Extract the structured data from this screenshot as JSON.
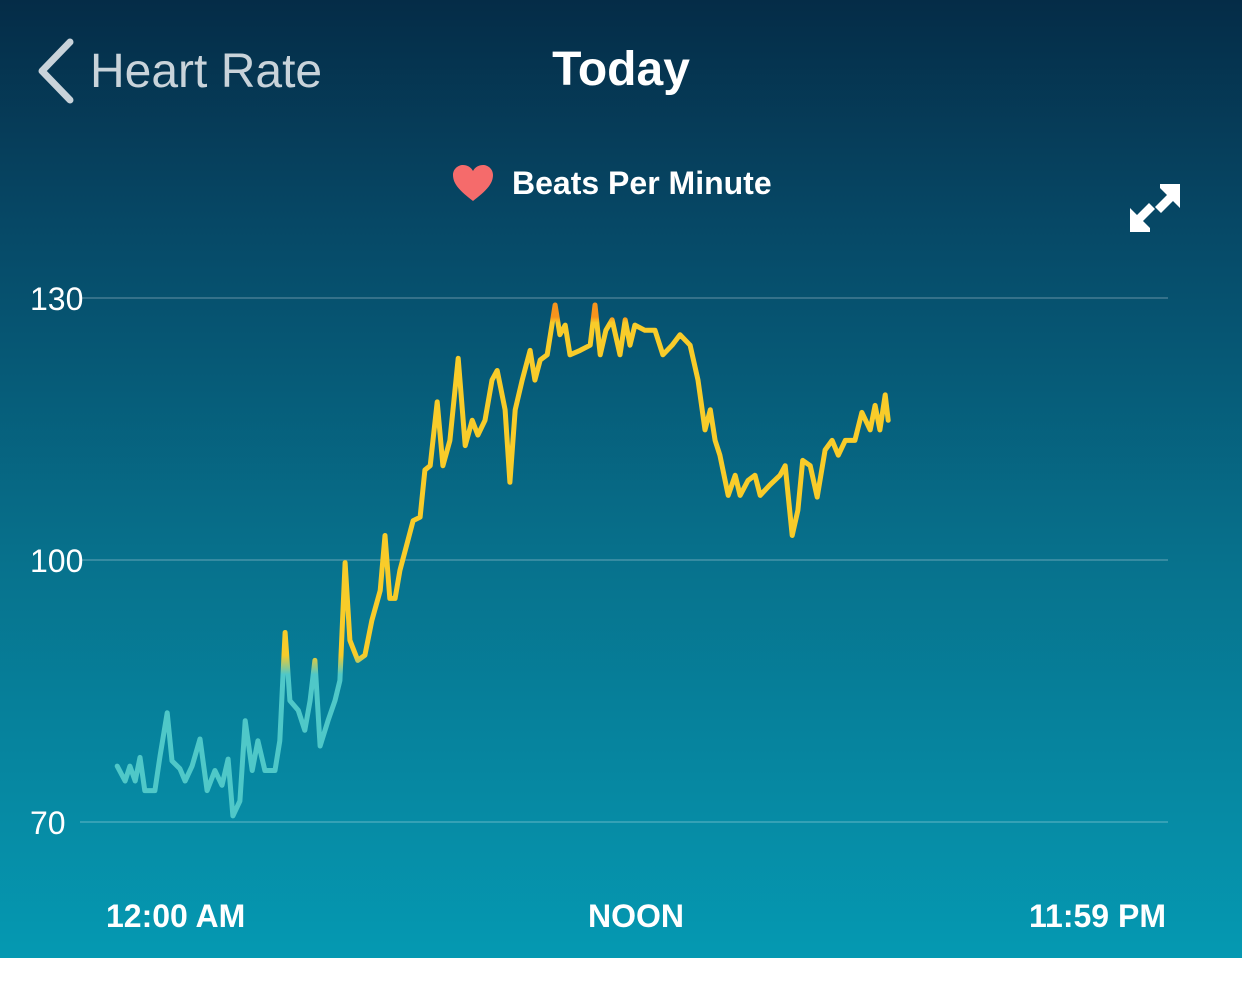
{
  "header": {
    "back_label": "Heart Rate",
    "title": "Today"
  },
  "legend": {
    "label": "Beats Per Minute",
    "icon": "heart-icon",
    "color": "#f56b6b"
  },
  "expand_icon": "expand-icon",
  "colors": {
    "out_of_zone": "#4fc8c8",
    "fat_burn": "#f8cc2a",
    "cardio": "#f7941d"
  },
  "chart_data": {
    "type": "line",
    "title": "Beats Per Minute",
    "xlabel": "",
    "ylabel": "",
    "xlim": [
      0,
      24
    ],
    "ylim": [
      70,
      130
    ],
    "y_ticks": [
      {
        "value": 130,
        "label": "130"
      },
      {
        "value": 100,
        "label": "100"
      },
      {
        "value": 70,
        "label": "70"
      }
    ],
    "x_ticks": [
      {
        "value": 0.5,
        "label": "12:00 AM"
      },
      {
        "value": 12,
        "label": "NOON"
      },
      {
        "value": 23.5,
        "label": "11:59 PM"
      }
    ],
    "grid": true,
    "zones": {
      "fat_burn_min": 88,
      "cardio_min": 127.5
    },
    "series": [
      {
        "name": "Heart Rate",
        "x_unit": "hours",
        "points": [
          [
            0.05,
            76.4
          ],
          [
            0.23,
            74.7
          ],
          [
            0.34,
            76.4
          ],
          [
            0.46,
            74.7
          ],
          [
            0.57,
            77.4
          ],
          [
            0.68,
            73.6
          ],
          [
            0.91,
            73.6
          ],
          [
            1.03,
            77.6
          ],
          [
            1.19,
            82.5
          ],
          [
            1.3,
            77.0
          ],
          [
            1.48,
            76.1
          ],
          [
            1.6,
            74.7
          ],
          [
            1.76,
            76.4
          ],
          [
            1.94,
            79.5
          ],
          [
            2.1,
            73.6
          ],
          [
            2.28,
            75.9
          ],
          [
            2.44,
            74.2
          ],
          [
            2.58,
            77.2
          ],
          [
            2.69,
            70.7
          ],
          [
            2.85,
            72.4
          ],
          [
            2.97,
            81.6
          ],
          [
            3.13,
            75.9
          ],
          [
            3.26,
            79.3
          ],
          [
            3.42,
            75.9
          ],
          [
            3.65,
            75.9
          ],
          [
            3.76,
            79.3
          ],
          [
            3.88,
            91.7
          ],
          [
            3.99,
            83.9
          ],
          [
            4.18,
            82.8
          ],
          [
            4.33,
            80.5
          ],
          [
            4.45,
            83.9
          ],
          [
            4.56,
            88.5
          ],
          [
            4.68,
            78.7
          ],
          [
            4.86,
            81.6
          ],
          [
            5.02,
            83.9
          ],
          [
            5.13,
            86.2
          ],
          [
            5.25,
            99.7
          ],
          [
            5.36,
            90.8
          ],
          [
            5.54,
            88.5
          ],
          [
            5.7,
            89.1
          ],
          [
            5.86,
            93.1
          ],
          [
            6.05,
            96.5
          ],
          [
            6.16,
            102.8
          ],
          [
            6.27,
            95.6
          ],
          [
            6.39,
            95.6
          ],
          [
            6.5,
            98.8
          ],
          [
            6.68,
            102.2
          ],
          [
            6.8,
            104.5
          ],
          [
            6.96,
            104.9
          ],
          [
            7.07,
            110.3
          ],
          [
            7.19,
            110.8
          ],
          [
            7.35,
            118.1
          ],
          [
            7.48,
            110.8
          ],
          [
            7.64,
            113.7
          ],
          [
            7.83,
            123.1
          ],
          [
            7.99,
            113.1
          ],
          [
            8.15,
            116.0
          ],
          [
            8.28,
            114.3
          ],
          [
            8.44,
            116.0
          ],
          [
            8.6,
            120.6
          ],
          [
            8.72,
            121.7
          ],
          [
            8.9,
            117.2
          ],
          [
            9.01,
            108.9
          ],
          [
            9.13,
            117.2
          ],
          [
            9.29,
            120.6
          ],
          [
            9.47,
            124.0
          ],
          [
            9.58,
            120.6
          ],
          [
            9.7,
            122.9
          ],
          [
            9.86,
            123.5
          ],
          [
            10.04,
            129.2
          ],
          [
            10.15,
            125.8
          ],
          [
            10.27,
            126.9
          ],
          [
            10.38,
            123.5
          ],
          [
            10.61,
            124.0
          ],
          [
            10.84,
            124.6
          ],
          [
            10.95,
            129.2
          ],
          [
            11.07,
            123.5
          ],
          [
            11.2,
            126.3
          ],
          [
            11.34,
            127.5
          ],
          [
            11.52,
            123.5
          ],
          [
            11.64,
            127.5
          ],
          [
            11.75,
            124.6
          ],
          [
            11.86,
            126.9
          ],
          [
            12.09,
            126.3
          ],
          [
            12.32,
            126.3
          ],
          [
            12.5,
            123.5
          ],
          [
            12.71,
            124.6
          ],
          [
            12.89,
            125.8
          ],
          [
            13.12,
            124.6
          ],
          [
            13.3,
            120.6
          ],
          [
            13.46,
            114.9
          ],
          [
            13.58,
            117.2
          ],
          [
            13.69,
            113.7
          ],
          [
            13.8,
            112.0
          ],
          [
            13.99,
            107.4
          ],
          [
            14.15,
            109.7
          ],
          [
            14.26,
            107.4
          ],
          [
            14.44,
            109.1
          ],
          [
            14.6,
            109.7
          ],
          [
            14.72,
            107.4
          ],
          [
            14.94,
            108.6
          ],
          [
            15.17,
            109.7
          ],
          [
            15.29,
            110.8
          ],
          [
            15.45,
            102.8
          ],
          [
            15.58,
            105.7
          ],
          [
            15.69,
            111.4
          ],
          [
            15.86,
            110.8
          ],
          [
            16.02,
            107.2
          ],
          [
            16.2,
            112.6
          ],
          [
            16.36,
            113.7
          ],
          [
            16.5,
            112.0
          ],
          [
            16.66,
            113.7
          ],
          [
            16.88,
            113.7
          ],
          [
            17.04,
            116.9
          ],
          [
            17.23,
            114.9
          ],
          [
            17.34,
            117.7
          ],
          [
            17.45,
            114.9
          ],
          [
            17.57,
            118.9
          ],
          [
            17.64,
            116.0
          ]
        ]
      }
    ]
  }
}
